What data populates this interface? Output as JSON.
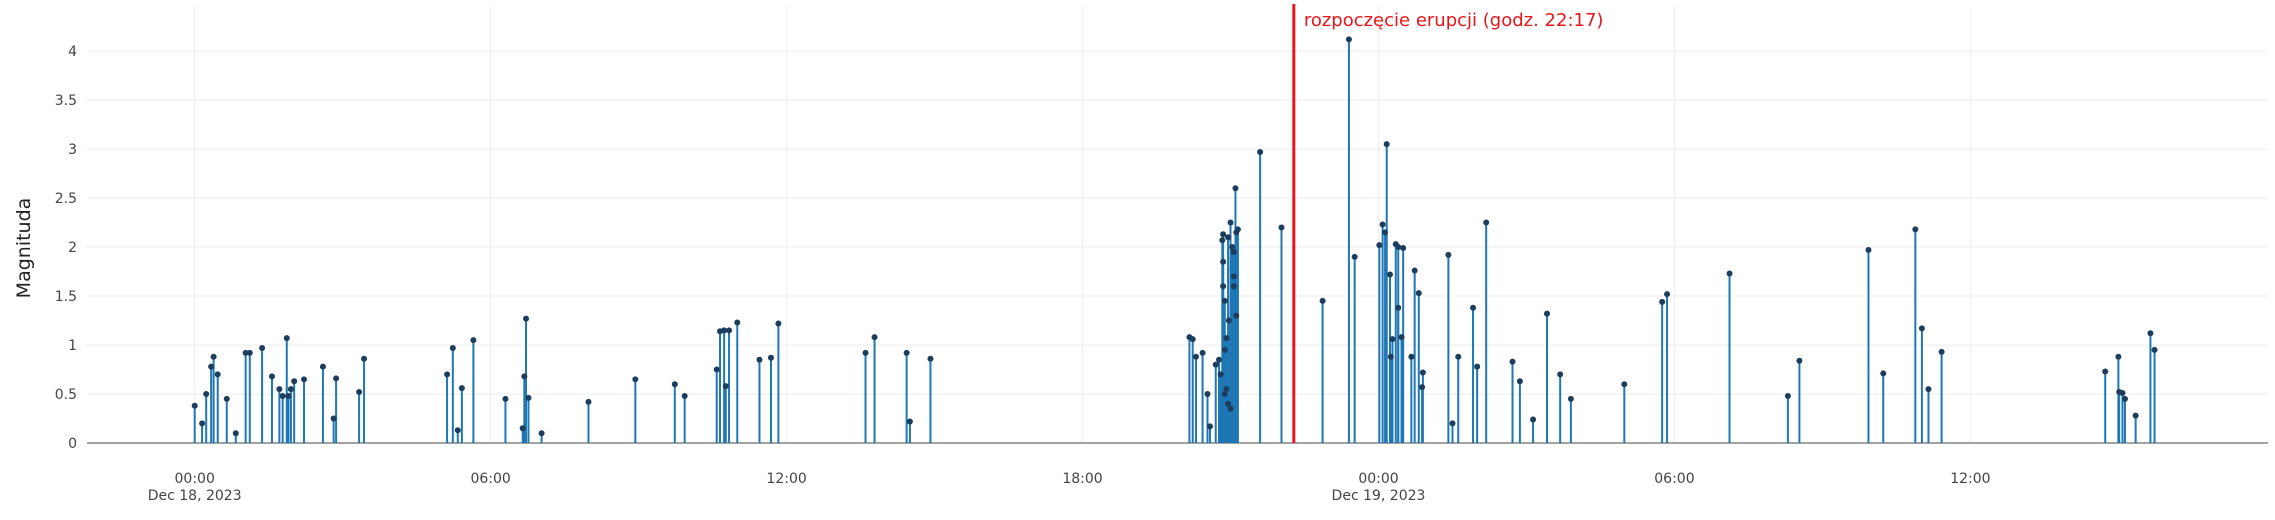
{
  "chart_data": {
    "type": "stem",
    "y_label": "Magnituda",
    "annotation": {
      "x": "2023-12-18T22:17",
      "text": "rozpoczęcie erupcji (godz. 22:17)",
      "color": "#e8161b"
    },
    "xlim": [
      "2023-12-17T21:49",
      "2023-12-19T18:02"
    ],
    "ylim": [
      0,
      4.45
    ],
    "yticks": [
      0,
      0.5,
      1,
      1.5,
      2,
      2.5,
      3,
      3.5,
      4
    ],
    "xticks": [
      {
        "value": "2023-12-18T00:00",
        "label": "00:00\nDec 18, 2023"
      },
      {
        "value": "2023-12-18T06:00",
        "label": "06:00"
      },
      {
        "value": "2023-12-18T12:00",
        "label": "12:00"
      },
      {
        "value": "2023-12-18T18:00",
        "label": "18:00"
      },
      {
        "value": "2023-12-19T00:00",
        "label": "00:00\nDec 19, 2023"
      },
      {
        "value": "2023-12-19T06:00",
        "label": "06:00"
      },
      {
        "value": "2023-12-19T12:00",
        "label": "12:00"
      }
    ],
    "grid": true,
    "series": [
      {
        "color": "#1f77b4",
        "marker_color": "#1c3d5e",
        "x": [
          "2023-12-18T00:00",
          "2023-12-18T00:09",
          "2023-12-18T00:14",
          "2023-12-18T00:20",
          "2023-12-18T00:23",
          "2023-12-18T00:28",
          "2023-12-18T00:39",
          "2023-12-18T00:50",
          "2023-12-18T01:02",
          "2023-12-18T01:07",
          "2023-12-18T01:22",
          "2023-12-18T01:34",
          "2023-12-18T01:43",
          "2023-12-18T01:47",
          "2023-12-18T01:52",
          "2023-12-18T01:54",
          "2023-12-18T01:57",
          "2023-12-18T02:01",
          "2023-12-18T02:13",
          "2023-12-18T02:36",
          "2023-12-18T02:49",
          "2023-12-18T02:52",
          "2023-12-18T03:20",
          "2023-12-18T03:26",
          "2023-12-18T05:07",
          "2023-12-18T05:14",
          "2023-12-18T05:20",
          "2023-12-18T05:25",
          "2023-12-18T05:39",
          "2023-12-18T06:18",
          "2023-12-18T06:39",
          "2023-12-18T06:41",
          "2023-12-18T06:43",
          "2023-12-18T06:46",
          "2023-12-18T07:02",
          "2023-12-18T07:59",
          "2023-12-18T08:56",
          "2023-12-18T09:44",
          "2023-12-18T09:56",
          "2023-12-18T10:35",
          "2023-12-18T10:39",
          "2023-12-18T10:44",
          "2023-12-18T10:46",
          "2023-12-18T10:50",
          "2023-12-18T11:00",
          "2023-12-18T11:27",
          "2023-12-18T11:41",
          "2023-12-18T11:50",
          "2023-12-18T13:36",
          "2023-12-18T13:47",
          "2023-12-18T14:26",
          "2023-12-18T14:30",
          "2023-12-18T14:55",
          "2023-12-18T20:10",
          "2023-12-18T20:14",
          "2023-12-18T20:18",
          "2023-12-18T20:26",
          "2023-12-18T20:32",
          "2023-12-18T20:35",
          "2023-12-18T20:42",
          "2023-12-18T20:46",
          "2023-12-18T20:48",
          "2023-12-18T20:50",
          "2023-12-18T20:51",
          "2023-12-18T20:51",
          "2023-12-18T20:51",
          "2023-12-18T20:53",
          "2023-12-18T20:53",
          "2023-12-18T20:53",
          "2023-12-18T20:55",
          "2023-12-18T20:55",
          "2023-12-18T20:57",
          "2023-12-18T20:57",
          "2023-12-18T20:58",
          "2023-12-18T21:00",
          "2023-12-18T21:00",
          "2023-12-18T21:02",
          "2023-12-18T21:04",
          "2023-12-18T21:04",
          "2023-12-18T21:04",
          "2023-12-18T21:06",
          "2023-12-18T21:07",
          "2023-12-18T21:07",
          "2023-12-18T21:09",
          "2023-12-18T21:36",
          "2023-12-18T22:02",
          "2023-12-18T22:52",
          "2023-12-18T23:24",
          "2023-12-18T23:31",
          "2023-12-19T00:01",
          "2023-12-19T00:05",
          "2023-12-19T00:08",
          "2023-12-19T00:10",
          "2023-12-19T00:14",
          "2023-12-19T00:15",
          "2023-12-19T00:17",
          "2023-12-19T00:21",
          "2023-12-19T00:24",
          "2023-12-19T00:24",
          "2023-12-19T00:28",
          "2023-12-19T00:30",
          "2023-12-19T00:40",
          "2023-12-19T00:44",
          "2023-12-19T00:49",
          "2023-12-19T00:53",
          "2023-12-19T00:54",
          "2023-12-19T01:25",
          "2023-12-19T01:30",
          "2023-12-19T01:37",
          "2023-12-19T01:55",
          "2023-12-19T02:00",
          "2023-12-19T02:11",
          "2023-12-19T02:43",
          "2023-12-19T02:52",
          "2023-12-19T03:08",
          "2023-12-19T03:25",
          "2023-12-19T03:41",
          "2023-12-19T03:54",
          "2023-12-19T04:59",
          "2023-12-19T05:45",
          "2023-12-19T05:51",
          "2023-12-19T07:07",
          "2023-12-19T08:18",
          "2023-12-19T08:32",
          "2023-12-19T09:56",
          "2023-12-19T10:14",
          "2023-12-19T10:53",
          "2023-12-19T11:01",
          "2023-12-19T11:09",
          "2023-12-19T11:25",
          "2023-12-19T14:44",
          "2023-12-19T15:00",
          "2023-12-19T15:01",
          "2023-12-19T15:05",
          "2023-12-19T15:08",
          "2023-12-19T15:21",
          "2023-12-19T15:39",
          "2023-12-19T15:44"
        ],
        "values": [
          0.38,
          0.2,
          0.5,
          0.78,
          0.88,
          0.7,
          0.45,
          0.1,
          0.92,
          0.92,
          0.97,
          0.68,
          0.55,
          0.48,
          1.07,
          0.48,
          0.55,
          0.63,
          0.65,
          0.78,
          0.25,
          0.66,
          0.52,
          0.86,
          0.7,
          0.97,
          0.13,
          0.56,
          1.05,
          0.45,
          0.15,
          0.68,
          1.27,
          0.46,
          0.1,
          0.42,
          0.65,
          0.6,
          0.48,
          0.75,
          1.14,
          1.15,
          0.58,
          1.15,
          1.23,
          0.85,
          0.87,
          1.22,
          0.92,
          1.08,
          0.92,
          0.22,
          0.86,
          1.08,
          1.06,
          0.88,
          0.92,
          0.5,
          0.17,
          0.8,
          0.85,
          0.7,
          2.07,
          1.85,
          2.13,
          1.6,
          0.5,
          0.95,
          1.45,
          0.55,
          1.07,
          2.1,
          0.4,
          1.25,
          2.25,
          0.35,
          2.0,
          1.95,
          1.6,
          1.7,
          2.6,
          2.15,
          1.3,
          2.18,
          2.97,
          2.2,
          1.45,
          4.12,
          1.9,
          2.02,
          2.23,
          2.15,
          3.05,
          1.72,
          0.88,
          1.06,
          2.03,
          1.38,
          2.0,
          1.08,
          1.99,
          0.88,
          1.76,
          1.53,
          0.57,
          0.72,
          1.92,
          0.2,
          0.88,
          1.38,
          0.78,
          2.25,
          0.83,
          0.63,
          0.24,
          1.32,
          0.7,
          0.45,
          0.6,
          1.44,
          1.52,
          1.73,
          0.48,
          0.84,
          1.97,
          0.71,
          2.18,
          1.17,
          0.55,
          0.93,
          0.73,
          0.88,
          0.52,
          0.51,
          0.45,
          0.28,
          1.12,
          0.95
        ]
      }
    ]
  }
}
